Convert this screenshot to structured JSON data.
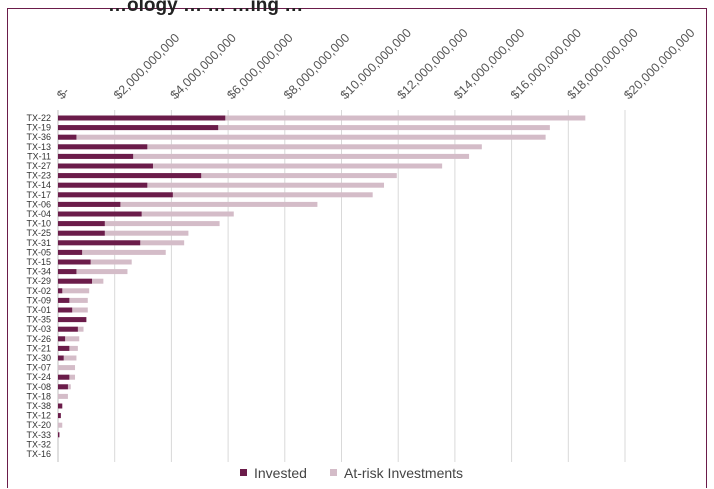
{
  "title_fragment": "…ology … … …ing …",
  "chart_data": {
    "type": "bar",
    "orientation": "horizontal",
    "stacked": false,
    "categories": [
      "TX-22",
      "TX-19",
      "TX-36",
      "TX-13",
      "TX-11",
      "TX-27",
      "TX-23",
      "TX-14",
      "TX-17",
      "TX-06",
      "TX-04",
      "TX-10",
      "TX-25",
      "TX-31",
      "TX-05",
      "TX-15",
      "TX-34",
      "TX-29",
      "TX-02",
      "TX-09",
      "TX-01",
      "TX-35",
      "TX-03",
      "TX-26",
      "TX-21",
      "TX-30",
      "TX-07",
      "TX-24",
      "TX-08",
      "TX-18",
      "TX-38",
      "TX-12",
      "TX-20",
      "TX-33",
      "TX-32",
      "TX-16"
    ],
    "series": [
      {
        "name": "Invested",
        "color": "#6b1c4a",
        "values": [
          5900000000,
          5650000000,
          650000000,
          3150000000,
          2650000000,
          3350000000,
          5050000000,
          3150000000,
          4050000000,
          2200000000,
          2950000000,
          1650000000,
          1650000000,
          2900000000,
          850000000,
          1150000000,
          650000000,
          1200000000,
          150000000,
          400000000,
          500000000,
          1000000000,
          700000000,
          250000000,
          400000000,
          200000000,
          0,
          400000000,
          350000000,
          0,
          150000000,
          100000000,
          0,
          50000000,
          0,
          0
        ]
      },
      {
        "name": "At-risk Investments",
        "color": "#d4bcc8",
        "values": [
          18600000000,
          17350000000,
          17200000000,
          14950000000,
          14500000000,
          13550000000,
          11950000000,
          11500000000,
          11100000000,
          9150000000,
          6200000000,
          5700000000,
          4600000000,
          4450000000,
          3800000000,
          2600000000,
          2450000000,
          1600000000,
          1100000000,
          1050000000,
          1050000000,
          1000000000,
          900000000,
          750000000,
          700000000,
          650000000,
          600000000,
          600000000,
          450000000,
          350000000,
          150000000,
          100000000,
          150000000,
          50000000,
          0,
          0
        ]
      }
    ],
    "xlim": [
      0,
      20000000000
    ],
    "x_ticks": [
      0,
      2000000000,
      4000000000,
      6000000000,
      8000000000,
      10000000000,
      12000000000,
      14000000000,
      16000000000,
      18000000000,
      20000000000
    ],
    "x_tick_labels": [
      "$-",
      "$2,000,000,000",
      "$4,000,000,000",
      "$6,000,000,000",
      "$8,000,000,000",
      "$10,000,000,000",
      "$12,000,000,000",
      "$14,000,000,000",
      "$16,000,000,000",
      "$18,000,000,000",
      "$20,000,000,000"
    ],
    "x_axis_position": "top",
    "grid": true,
    "legend": {
      "position": "bottom",
      "entries": [
        "Invested",
        "At-risk Investments"
      ]
    }
  }
}
